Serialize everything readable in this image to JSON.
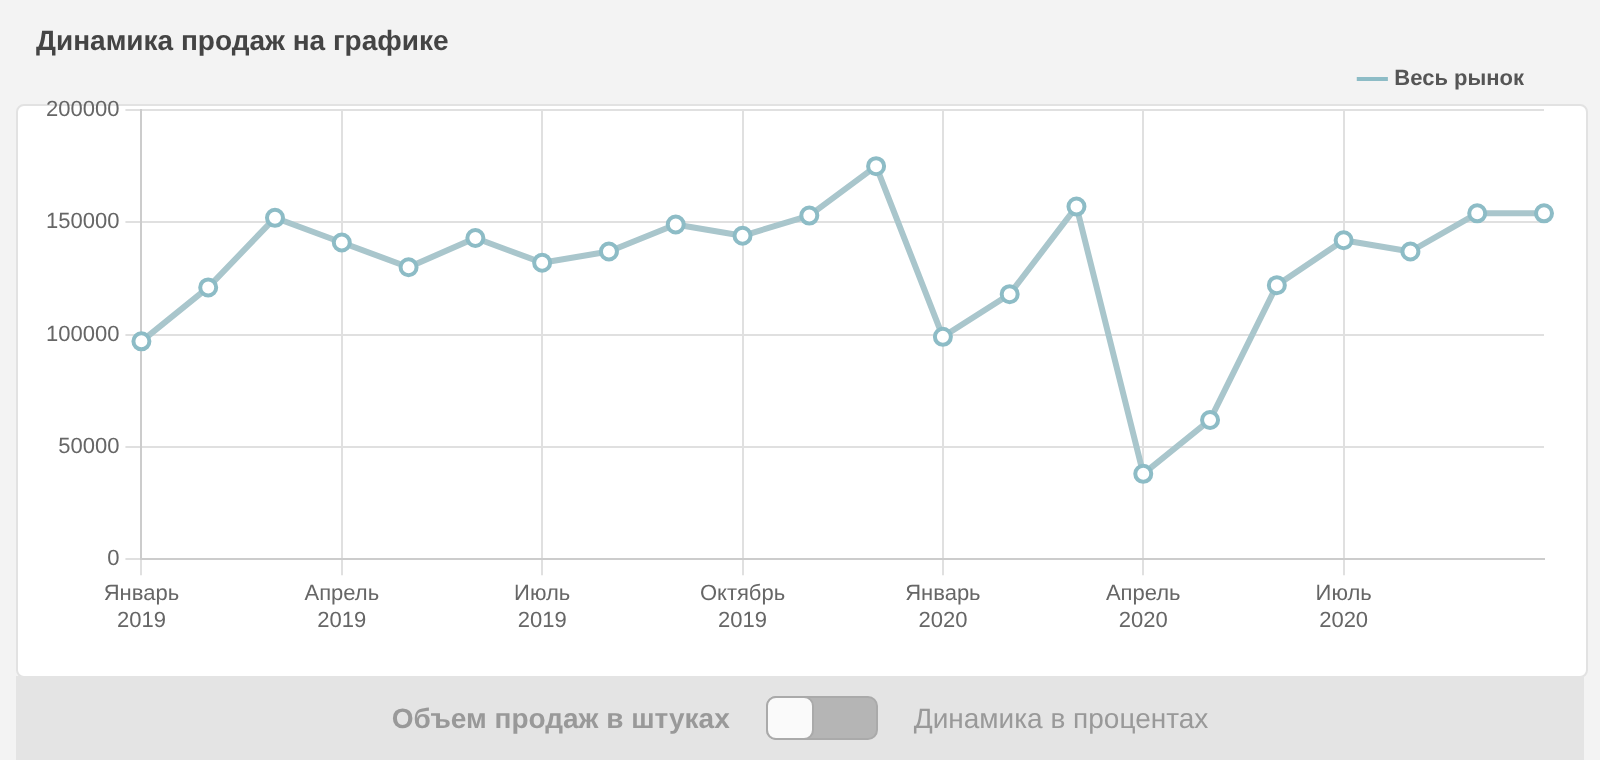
{
  "chart_data": {
    "type": "line",
    "title": "Динамика продаж на графике",
    "categories": [
      "Январь 2019",
      null,
      null,
      "Апрель 2019",
      null,
      null,
      "Июль 2019",
      null,
      null,
      "Октябрь 2019",
      null,
      null,
      "Январь 2020",
      null,
      null,
      "Апрель 2020",
      null,
      null,
      "Июль 2020",
      null,
      null,
      null
    ],
    "series": [
      {
        "name": "Весь рынок",
        "color": "#a9c6cc",
        "values": [
          97000,
          121000,
          152000,
          141000,
          130000,
          143000,
          132000,
          137000,
          149000,
          144000,
          153000,
          175000,
          99000,
          118000,
          157000,
          38000,
          62000,
          122000,
          142000,
          137000,
          154000,
          154000
        ]
      }
    ],
    "ylim": [
      0,
      200000
    ],
    "yticks": [
      0,
      50000,
      100000,
      150000,
      200000
    ],
    "grid": true,
    "legend": "top right",
    "marker": "circle",
    "line_style": "solid",
    "annotations": [
      "Объем продаж в штуках",
      "Динамика в процентах"
    ]
  }
}
